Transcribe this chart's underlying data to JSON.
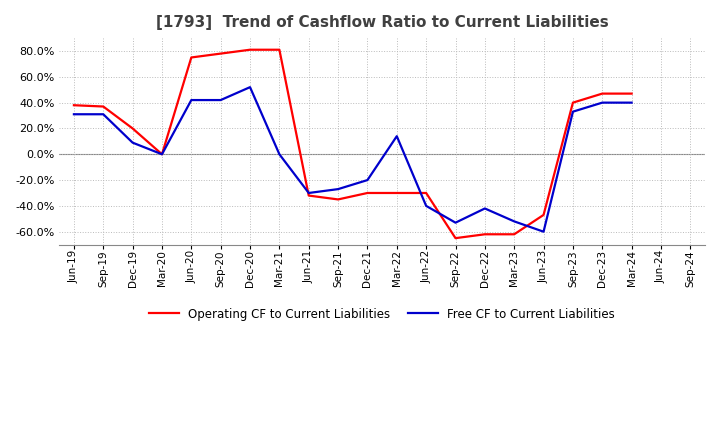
{
  "title": "[1793]  Trend of Cashflow Ratio to Current Liabilities",
  "title_color": "#404040",
  "title_fontsize": 11,
  "ylim": [
    -0.7,
    0.9
  ],
  "yticks": [
    -0.6,
    -0.4,
    -0.2,
    0.0,
    0.2,
    0.4,
    0.6,
    0.8
  ],
  "background_color": "#ffffff",
  "plot_background_color": "#ffffff",
  "grid_color": "#bbbbbb",
  "x_labels": [
    "Jun-19",
    "Sep-19",
    "Dec-19",
    "Mar-20",
    "Jun-20",
    "Sep-20",
    "Dec-20",
    "Mar-21",
    "Jun-21",
    "Sep-21",
    "Dec-21",
    "Mar-22",
    "Jun-22",
    "Sep-22",
    "Dec-22",
    "Mar-23",
    "Jun-23",
    "Sep-23",
    "Dec-23",
    "Mar-24",
    "Jun-24",
    "Sep-24"
  ],
  "operating_cf": [
    0.38,
    0.37,
    0.2,
    0.0,
    0.75,
    0.78,
    0.81,
    0.81,
    -0.32,
    -0.35,
    -0.3,
    -0.3,
    -0.3,
    -0.65,
    -0.62,
    -0.62,
    -0.47,
    0.4,
    0.47,
    null,
    null,
    null
  ],
  "free_cf": [
    0.31,
    0.31,
    0.09,
    0.0,
    0.42,
    0.42,
    0.52,
    0.0,
    -0.3,
    -0.27,
    -0.2,
    0.14,
    -0.4,
    -0.53,
    -0.42,
    -0.52,
    -0.6,
    0.33,
    0.4,
    null,
    null,
    null
  ],
  "operating_color": "#ff0000",
  "free_color": "#0000cc",
  "legend_operating": "Operating CF to Current Liabilities",
  "legend_free": "Free CF to Current Liabilities",
  "line_width": 1.6
}
